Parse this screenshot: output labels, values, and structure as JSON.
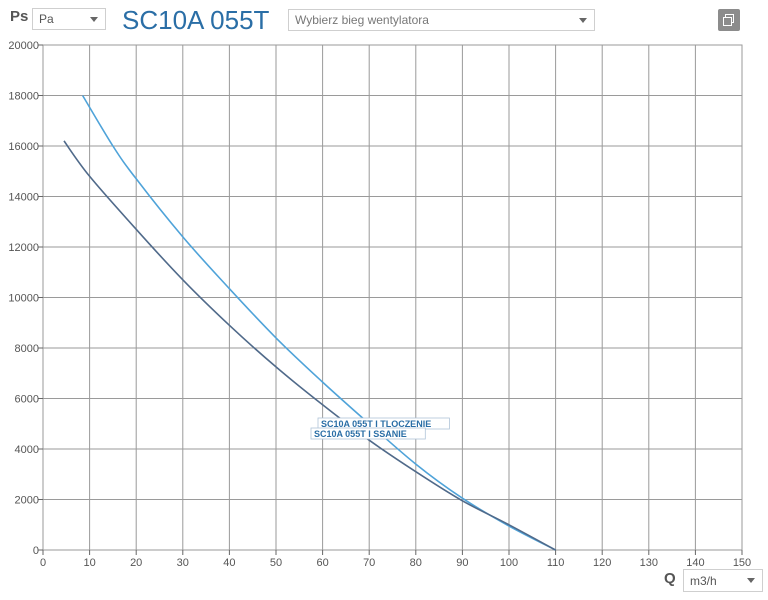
{
  "header": {
    "y_axis_label": "Ps",
    "y_unit": "Pa",
    "title": "SC10A 055T",
    "fan_speed_placeholder": "Wybierz bieg wentylatora"
  },
  "footer": {
    "x_axis_label": "Q",
    "x_unit": "m3/h"
  },
  "colors": {
    "pressure_line": "#4fa3d9",
    "suction_line": "#506a8a",
    "accent": "#2a6ea6"
  },
  "icons": {
    "copy": "copy-icon"
  },
  "chart_data": {
    "type": "line",
    "title": "SC10A 055T",
    "xlabel": "Q",
    "ylabel": "Ps",
    "xlim": [
      0,
      150
    ],
    "ylim": [
      0,
      20000
    ],
    "x_ticks": [
      0,
      10,
      20,
      30,
      40,
      50,
      60,
      70,
      80,
      90,
      100,
      110,
      120,
      130,
      140,
      150
    ],
    "y_ticks": [
      0,
      2000,
      4000,
      6000,
      8000,
      10000,
      12000,
      14000,
      16000,
      18000,
      20000
    ],
    "grid": true,
    "legend_placement": "center",
    "series": [
      {
        "name": "SC10A 055T I TLOCZENIE",
        "color": "#4fa3d9",
        "x": [
          8.5,
          15,
          20,
          30,
          40,
          50,
          60,
          70,
          80,
          90,
          100,
          110
        ],
        "y": [
          18000,
          16000,
          14700,
          12400,
          10350,
          8400,
          6650,
          5000,
          3400,
          2050,
          950,
          0
        ]
      },
      {
        "name": "SC10A 055T I SSANIE",
        "color": "#506a8a",
        "x": [
          4.5,
          10,
          20,
          30,
          40,
          50,
          60,
          70,
          80,
          90,
          100,
          110
        ],
        "y": [
          16200,
          14800,
          12700,
          10700,
          8900,
          7250,
          5750,
          4350,
          3100,
          1950,
          1000,
          0
        ]
      }
    ]
  }
}
